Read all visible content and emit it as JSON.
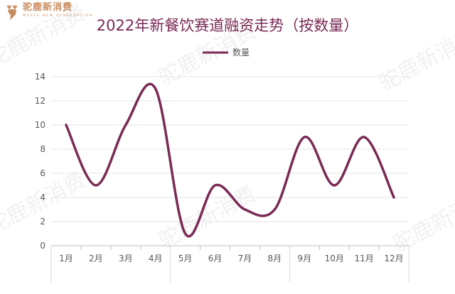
{
  "brand": {
    "name": "驼鹿新消费",
    "tagline": "MOOSE NEW CONSUMPTION",
    "watermark": "驼鹿新消费"
  },
  "chart_data": {
    "type": "line",
    "title": "2022年新餐饮赛道融资走势（按数量）",
    "categories": [
      "1月",
      "2月",
      "3月",
      "4月",
      "5月",
      "6月",
      "7月",
      "8月",
      "9月",
      "10月",
      "11月",
      "12月"
    ],
    "series": [
      {
        "name": "数量",
        "values": [
          10,
          5,
          10,
          13,
          1,
          5,
          3,
          3,
          9,
          5,
          9,
          4
        ]
      }
    ],
    "ylim": [
      0,
      14
    ],
    "yticks": [
      0,
      2,
      4,
      6,
      8,
      10,
      12,
      14
    ],
    "grid": true,
    "legend": "top",
    "line_color": "#7a2a55",
    "smooth": true
  }
}
